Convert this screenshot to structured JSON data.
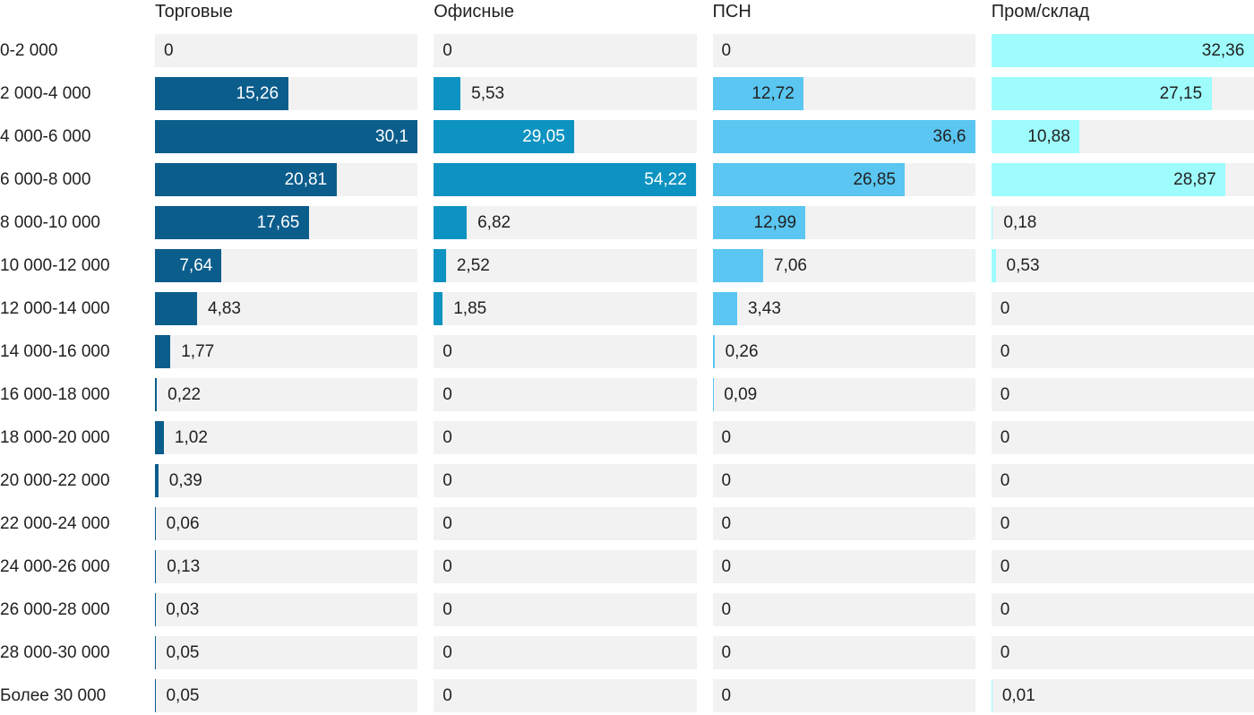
{
  "chart_data": {
    "type": "bar",
    "orientation": "horizontal",
    "layout": "small-multiples, one panel per series, bars normalized to each panel's max value",
    "grid": false,
    "legend_position": "column headers on top",
    "track_color": "#f2f2f2",
    "text_color": "#212121",
    "decimal_separator": ",",
    "categories": [
      "0-2 000",
      "2 000-4 000",
      "4 000-6 000",
      "6 000-8 000",
      "8 000-10 000",
      "10 000-12 000",
      "12 000-14 000",
      "14 000-16 000",
      "16 000-18 000",
      "18 000-20 000",
      "20 000-22 000",
      "22 000-24 000",
      "24 000-26 000",
      "26 000-28 000",
      "28 000-30 000",
      "Более 30 000"
    ],
    "series": [
      {
        "name": "Торговые",
        "color": "#0b5d8c",
        "label_inside_color": "#ffffff",
        "values": [
          0,
          15.26,
          30.1,
          20.81,
          17.65,
          7.64,
          4.83,
          1.77,
          0.22,
          1.02,
          0.39,
          0.06,
          0.13,
          0.03,
          0.05,
          0.05
        ]
      },
      {
        "name": "Офисные",
        "color": "#0d93c1",
        "label_inside_color": "#ffffff",
        "values": [
          0,
          5.53,
          29.05,
          54.22,
          6.82,
          2.52,
          1.85,
          0,
          0,
          0,
          0,
          0,
          0,
          0,
          0,
          0
        ]
      },
      {
        "name": "ПСН",
        "color": "#5ac6f1",
        "label_inside_color": "#212121",
        "values": [
          0,
          12.72,
          36.6,
          26.85,
          12.99,
          7.06,
          3.43,
          0.26,
          0.09,
          0,
          0,
          0,
          0,
          0,
          0,
          0
        ]
      },
      {
        "name": "Пром/склад",
        "color": "#9efcfc",
        "label_inside_color": "#212121",
        "values": [
          32.36,
          27.15,
          10.88,
          28.87,
          0.18,
          0.53,
          0,
          0,
          0,
          0,
          0,
          0,
          0,
          0,
          0,
          0.01
        ]
      }
    ]
  }
}
